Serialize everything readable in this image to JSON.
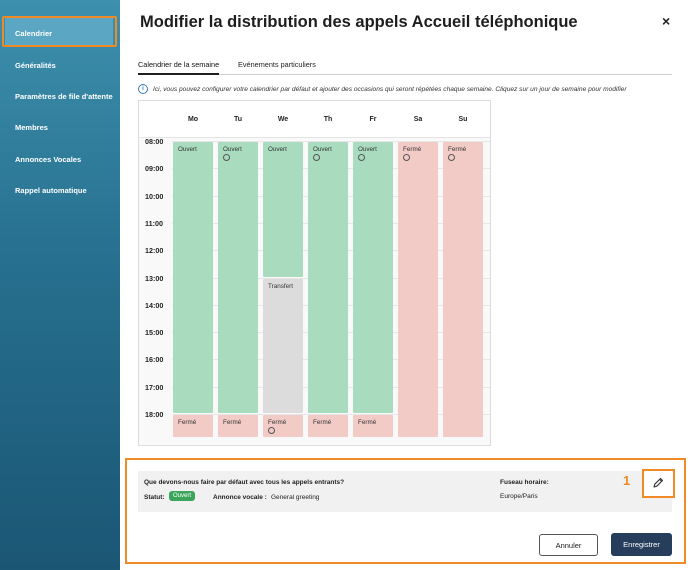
{
  "sidebar": {
    "items": [
      {
        "label": "Calendrier"
      },
      {
        "label": "Généralités"
      },
      {
        "label": "Paramètres de file d'attente"
      },
      {
        "label": "Membres"
      },
      {
        "label": "Annonces Vocales"
      },
      {
        "label": "Rappel automatique"
      }
    ],
    "active_index": 0
  },
  "header": {
    "title": "Modifier la distribution des appels Accueil téléphonique",
    "close_symbol": "×"
  },
  "tabs": [
    {
      "label": "Calendrier de la semaine"
    },
    {
      "label": "Evénements particuliers"
    }
  ],
  "info_text": "Ici, vous pouvez configurer votre calendrier par défaut et ajouter des occasions qui seront répétées chaque semaine. Cliquez sur un jour de semaine pour modifier",
  "calendar": {
    "days": [
      "Mo",
      "Tu",
      "We",
      "Th",
      "Fr",
      "Sa",
      "Su"
    ],
    "hours": [
      "08:00",
      "09:00",
      "10:00",
      "11:00",
      "12:00",
      "13:00",
      "14:00",
      "15:00",
      "16:00",
      "17:00",
      "18:00"
    ],
    "blocks": [
      {
        "day": 0,
        "label": "Ouvert",
        "type": "green",
        "start": 8,
        "end": 18,
        "icon": false
      },
      {
        "day": 0,
        "label": "Fermé",
        "type": "red",
        "start": 18,
        "end": 19,
        "icon": false
      },
      {
        "day": 1,
        "label": "Ouvert",
        "type": "green",
        "start": 8,
        "end": 18,
        "icon": true
      },
      {
        "day": 1,
        "label": "Fermé",
        "type": "red",
        "start": 18,
        "end": 19,
        "icon": false
      },
      {
        "day": 2,
        "label": "Ouvert",
        "type": "green",
        "start": 8,
        "end": 13,
        "icon": false
      },
      {
        "day": 2,
        "label": "Transfert",
        "type": "gray",
        "start": 13,
        "end": 18,
        "icon": false
      },
      {
        "day": 2,
        "label": "Fermé",
        "type": "red",
        "start": 18,
        "end": 19,
        "icon": true
      },
      {
        "day": 3,
        "label": "Ouvert",
        "type": "green",
        "start": 8,
        "end": 18,
        "icon": true
      },
      {
        "day": 3,
        "label": "Fermé",
        "type": "red",
        "start": 18,
        "end": 19,
        "icon": false
      },
      {
        "day": 4,
        "label": "Ouvert",
        "type": "green",
        "start": 8,
        "end": 18,
        "icon": true
      },
      {
        "day": 4,
        "label": "Fermé",
        "type": "red",
        "start": 18,
        "end": 19,
        "icon": false
      },
      {
        "day": 5,
        "label": "Fermé",
        "type": "red",
        "start": 8,
        "end": 19,
        "icon": true
      },
      {
        "day": 6,
        "label": "Fermé",
        "type": "red",
        "start": 8,
        "end": 19,
        "icon": true
      }
    ]
  },
  "summary": {
    "question": "Que devons-nous faire par défaut avec tous les appels entrants?",
    "status_label": "Statut:",
    "status_value": "Ouvert",
    "announcement_label": "Annonce vocale :",
    "announcement_value": "General greeting",
    "timezone_label": "Fuseau horaire:",
    "timezone_value": "Europe/Paris"
  },
  "annotation_number": "1",
  "buttons": {
    "cancel": "Annuler",
    "save": "Enregistrer"
  },
  "colors": {
    "accent_orange": "#f08a24",
    "open_green": "#a9dbbf",
    "closed_red": "#f2cbc6",
    "transfer_gray": "#dddcdc",
    "save_button": "#263d5c",
    "badge_green": "#3ba55c"
  },
  "icons": {
    "info": "info-circle-icon",
    "close": "close-icon",
    "edit": "pencil-icon",
    "block_marker": "circle-icon"
  }
}
